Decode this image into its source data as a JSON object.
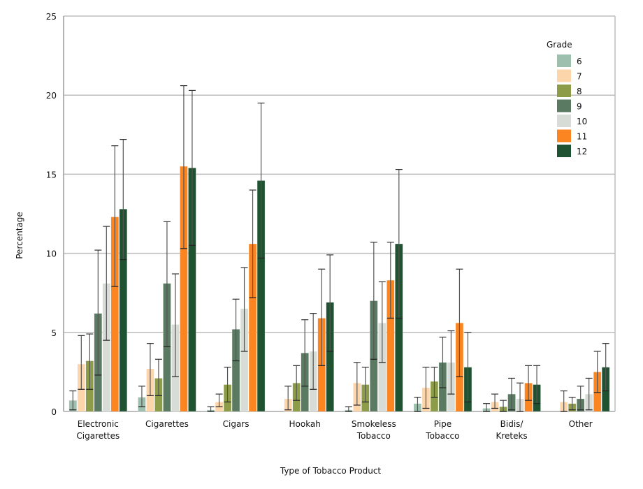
{
  "chart_data": {
    "type": "bar",
    "title": "",
    "xlabel": "Type of Tobacco Product",
    "ylabel": "Percentage",
    "ylim": [
      0,
      25
    ],
    "yticks": [
      0,
      5,
      10,
      15,
      20,
      25
    ],
    "grid": true,
    "legend": {
      "title": "Grade",
      "placement": "top-right"
    },
    "categories": [
      [
        "Electronic",
        "Cigarettes"
      ],
      [
        "Cigarettes"
      ],
      [
        "Cigars"
      ],
      [
        "Hookah"
      ],
      [
        "Smokeless",
        "Tobacco"
      ],
      [
        "Pipe",
        "Tobacco"
      ],
      [
        "Bidis/",
        "Kreteks"
      ],
      [
        "Other"
      ]
    ],
    "series": [
      {
        "name": "6",
        "color": "#9dbfae",
        "values": [
          0.7,
          0.9,
          0.1,
          null,
          0.1,
          0.5,
          0.2,
          null
        ],
        "ci_low": [
          0.1,
          0.3,
          0.0,
          null,
          0.0,
          0.0,
          0.0,
          null
        ],
        "ci_high": [
          1.3,
          1.6,
          0.3,
          null,
          0.3,
          0.9,
          0.5,
          null
        ]
      },
      {
        "name": "7",
        "color": "#fdd5ab",
        "values": [
          3.0,
          2.7,
          0.6,
          0.8,
          1.8,
          1.5,
          0.6,
          0.6
        ],
        "ci_low": [
          1.4,
          1.0,
          0.3,
          0.1,
          0.4,
          0.2,
          0.2,
          0.0
        ],
        "ci_high": [
          4.8,
          4.3,
          1.1,
          1.6,
          3.1,
          2.8,
          1.1,
          1.3
        ]
      },
      {
        "name": "8",
        "color": "#8c9c48",
        "values": [
          3.2,
          2.1,
          1.7,
          1.8,
          1.7,
          1.9,
          0.3,
          0.5
        ],
        "ci_low": [
          1.4,
          1.0,
          0.6,
          0.7,
          0.6,
          0.9,
          0.0,
          0.1
        ],
        "ci_high": [
          4.9,
          3.3,
          2.8,
          2.9,
          2.8,
          2.8,
          0.7,
          0.9
        ]
      },
      {
        "name": "9",
        "color": "#5a7a62",
        "values": [
          6.2,
          8.1,
          5.2,
          3.7,
          7.0,
          3.1,
          1.1,
          0.8
        ],
        "ci_low": [
          2.3,
          4.1,
          3.2,
          1.6,
          3.3,
          1.5,
          0.1,
          0.1
        ],
        "ci_high": [
          10.2,
          12.0,
          7.1,
          5.8,
          10.7,
          4.7,
          2.1,
          1.6
        ]
      },
      {
        "name": "10",
        "color": "#d8dcd6",
        "values": [
          8.1,
          5.5,
          6.5,
          3.8,
          5.6,
          3.1,
          0.8,
          1.1
        ],
        "ci_low": [
          4.5,
          2.2,
          3.8,
          1.4,
          3.1,
          1.1,
          0.0,
          0.1
        ],
        "ci_high": [
          11.7,
          8.7,
          9.1,
          6.2,
          8.2,
          5.1,
          1.8,
          2.1
        ]
      },
      {
        "name": "11",
        "color": "#fb8520",
        "values": [
          12.3,
          15.5,
          10.6,
          5.9,
          8.3,
          5.6,
          1.8,
          2.5
        ],
        "ci_low": [
          7.9,
          10.3,
          7.2,
          2.9,
          5.9,
          2.2,
          0.7,
          1.2
        ],
        "ci_high": [
          16.8,
          20.6,
          14.0,
          9.0,
          10.7,
          9.0,
          2.9,
          3.8
        ]
      },
      {
        "name": "12",
        "color": "#1f5230",
        "values": [
          12.8,
          15.4,
          14.6,
          6.9,
          10.6,
          2.8,
          1.7,
          2.8
        ],
        "ci_low": [
          9.6,
          10.5,
          9.7,
          3.8,
          5.9,
          0.6,
          0.5,
          1.3
        ],
        "ci_high": [
          17.2,
          20.3,
          19.5,
          9.9,
          15.3,
          5.0,
          2.9,
          4.3
        ]
      }
    ]
  }
}
